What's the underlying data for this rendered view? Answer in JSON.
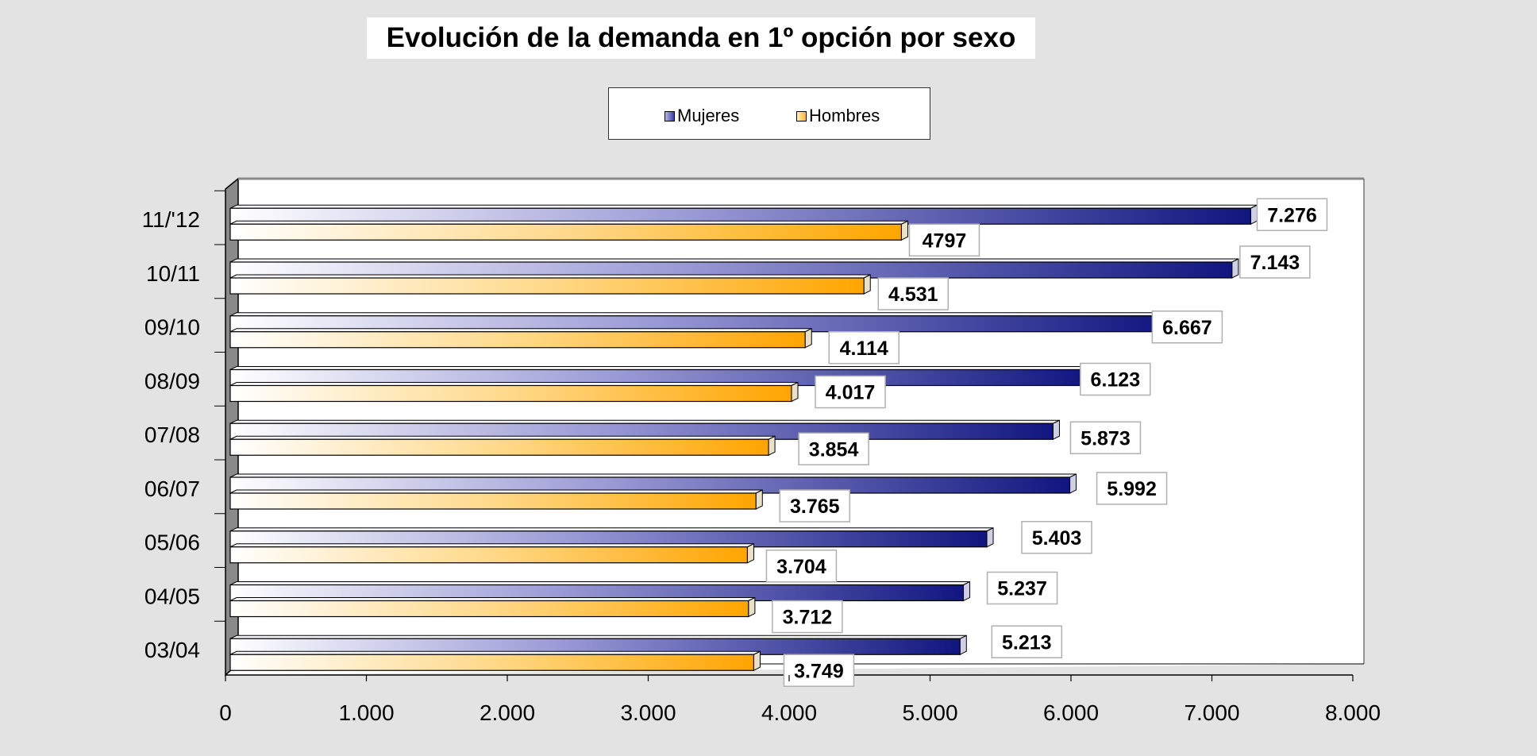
{
  "chart_data": {
    "type": "bar",
    "orientation": "horizontal",
    "title": "Evolución de la demanda en 1º opción por sexo",
    "categories": [
      "03/04",
      "04/05",
      "05/06",
      "06/07",
      "07/08",
      "08/09",
      "09/10",
      "10/11",
      "11/'12"
    ],
    "series": [
      {
        "name": "Mujeres",
        "values": [
          5213,
          5237,
          5403,
          5992,
          5873,
          6123,
          6667,
          7143,
          7276
        ],
        "labels": [
          "5.213",
          "5.237",
          "5.403",
          "5.992",
          "5.873",
          "6.123",
          "6.667",
          "7.143",
          "7.276"
        ],
        "color": "#1a1f8a"
      },
      {
        "name": "Hombres",
        "values": [
          3749,
          3712,
          3704,
          3765,
          3854,
          4017,
          4114,
          4531,
          4797
        ],
        "labels": [
          "3.749",
          "3.712",
          "3.704",
          "3.765",
          "3.854",
          "4.017",
          "4.114",
          "4.531",
          "4797"
        ],
        "color": "#ffaa00"
      }
    ],
    "xlim": [
      0,
      8000
    ],
    "xticks": [
      0,
      1000,
      2000,
      3000,
      4000,
      5000,
      6000,
      7000,
      8000
    ],
    "xtick_labels": [
      "0",
      "1.000",
      "2.000",
      "3.000",
      "4.000",
      "5.000",
      "6.000",
      "7.000",
      "8.000"
    ],
    "xlabel": "",
    "ylabel": "",
    "grid": false,
    "legend_position": "top-center",
    "style": "3d"
  }
}
